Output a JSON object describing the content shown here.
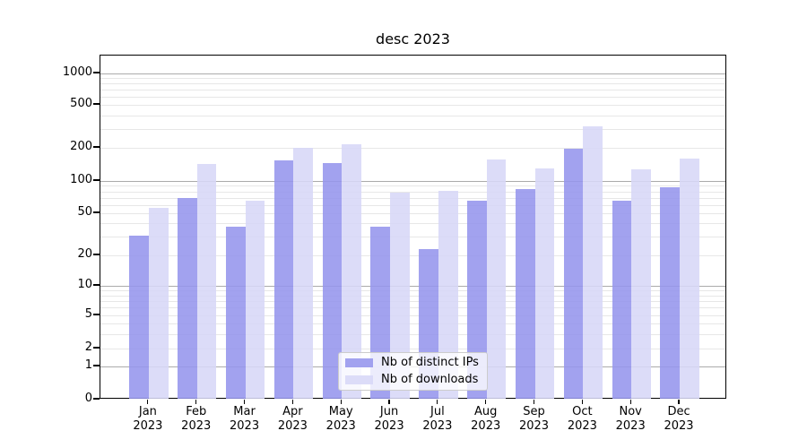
{
  "chart_data": {
    "type": "bar",
    "title": "desc 2023",
    "categories": [
      {
        "month": "Jan",
        "year": "2023"
      },
      {
        "month": "Feb",
        "year": "2023"
      },
      {
        "month": "Mar",
        "year": "2023"
      },
      {
        "month": "Apr",
        "year": "2023"
      },
      {
        "month": "May",
        "year": "2023"
      },
      {
        "month": "Jun",
        "year": "2023"
      },
      {
        "month": "Jul",
        "year": "2023"
      },
      {
        "month": "Aug",
        "year": "2023"
      },
      {
        "month": "Sep",
        "year": "2023"
      },
      {
        "month": "Oct",
        "year": "2023"
      },
      {
        "month": "Nov",
        "year": "2023"
      },
      {
        "month": "Dec",
        "year": "2023"
      }
    ],
    "series": [
      {
        "name": "Nb of distinct IPs",
        "color": "#9595ed",
        "values": [
          31,
          70,
          37,
          153,
          145,
          37,
          23,
          66,
          84,
          198,
          65,
          87
        ]
      },
      {
        "name": "Nb of downloads",
        "color": "#d7d7f7",
        "values": [
          56,
          144,
          65,
          200,
          216,
          78,
          81,
          158,
          130,
          315,
          127,
          161
        ]
      }
    ],
    "xlabel": "",
    "ylabel": "",
    "yscale": "symlog",
    "y_ticks": [
      1000,
      500,
      200,
      100,
      50,
      20,
      10,
      5,
      2,
      1,
      0
    ],
    "ylim": [
      0,
      1500
    ],
    "grid": "major-and-minor",
    "legend_position": "lower-center"
  }
}
